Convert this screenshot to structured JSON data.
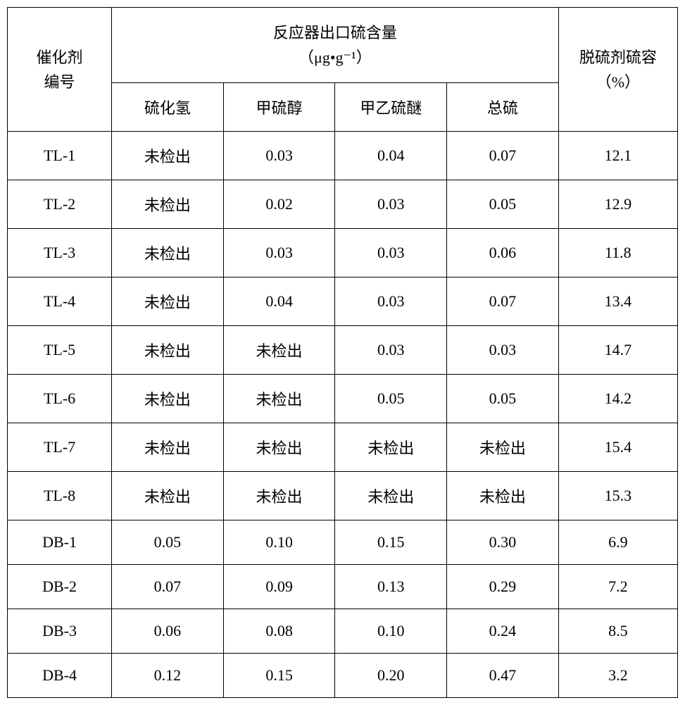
{
  "headers": {
    "catalyst_id": "催化剂\n编号",
    "outlet_sulfur": "反应器出口硫含量",
    "outlet_unit": "（μg•g⁻¹）",
    "desulfur_capacity": "脱硫剂硫容\n（%）",
    "sub": {
      "h2s": "硫化氢",
      "methyl": "甲硫醇",
      "mes": "甲乙硫醚",
      "total": "总硫"
    }
  },
  "nd": "未检出",
  "rows": [
    {
      "id": "TL-1",
      "h2s": "未检出",
      "methyl": "0.03",
      "mes": "0.04",
      "total": "0.07",
      "cap": "12.1"
    },
    {
      "id": "TL-2",
      "h2s": "未检出",
      "methyl": "0.02",
      "mes": "0.03",
      "total": "0.05",
      "cap": "12.9"
    },
    {
      "id": "TL-3",
      "h2s": "未检出",
      "methyl": "0.03",
      "mes": "0.03",
      "total": "0.06",
      "cap": "11.8"
    },
    {
      "id": "TL-4",
      "h2s": "未检出",
      "methyl": "0.04",
      "mes": "0.03",
      "total": "0.07",
      "cap": "13.4"
    },
    {
      "id": "TL-5",
      "h2s": "未检出",
      "methyl": "未检出",
      "mes": "0.03",
      "total": "0.03",
      "cap": "14.7"
    },
    {
      "id": "TL-6",
      "h2s": "未检出",
      "methyl": "未检出",
      "mes": "0.05",
      "total": "0.05",
      "cap": "14.2"
    },
    {
      "id": "TL-7",
      "h2s": "未检出",
      "methyl": "未检出",
      "mes": "未检出",
      "total": "未检出",
      "cap": "15.4"
    },
    {
      "id": "TL-8",
      "h2s": "未检出",
      "methyl": "未检出",
      "mes": "未检出",
      "total": "未检出",
      "cap": "15.3"
    },
    {
      "id": "DB-1",
      "h2s": "0.05",
      "methyl": "0.10",
      "mes": "0.15",
      "total": "0.30",
      "cap": "6.9"
    },
    {
      "id": "DB-2",
      "h2s": "0.07",
      "methyl": "0.09",
      "mes": "0.13",
      "total": "0.29",
      "cap": "7.2"
    },
    {
      "id": "DB-3",
      "h2s": "0.06",
      "methyl": "0.08",
      "mes": "0.10",
      "total": "0.24",
      "cap": "8.5"
    },
    {
      "id": "DB-4",
      "h2s": "0.12",
      "methyl": "0.15",
      "mes": "0.20",
      "total": "0.47",
      "cap": "3.2"
    }
  ],
  "style": {
    "border_color": "#000000",
    "background_color": "#ffffff",
    "text_color": "#000000",
    "font_size": 22,
    "font_family": "SimSun"
  }
}
